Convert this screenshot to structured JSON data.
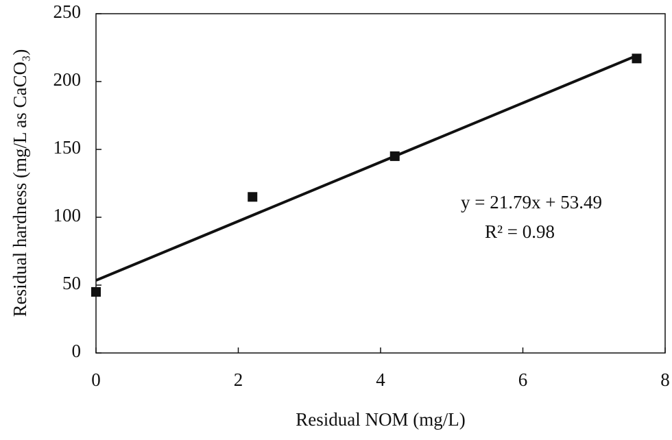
{
  "chart_data": {
    "type": "scatter",
    "x_label": "Residual NOM (mg/L)",
    "y_label": "Residual hardness (mg/L as CaCO₃)",
    "x": [
      0,
      2.2,
      4.2,
      7.6
    ],
    "values": [
      45,
      115,
      145,
      217
    ],
    "color": "#111111",
    "xlim": [
      0,
      8
    ],
    "xticks": [
      0,
      2,
      4,
      6,
      8
    ],
    "ylim": [
      0,
      250
    ],
    "yticks": [
      0,
      50,
      100,
      150,
      200,
      250
    ],
    "grid": false,
    "trendline": {
      "slope": 21.79,
      "intercept": 53.49,
      "label": "y = 21.79x + 53.49",
      "r2_label": "R² = 0.98"
    }
  }
}
